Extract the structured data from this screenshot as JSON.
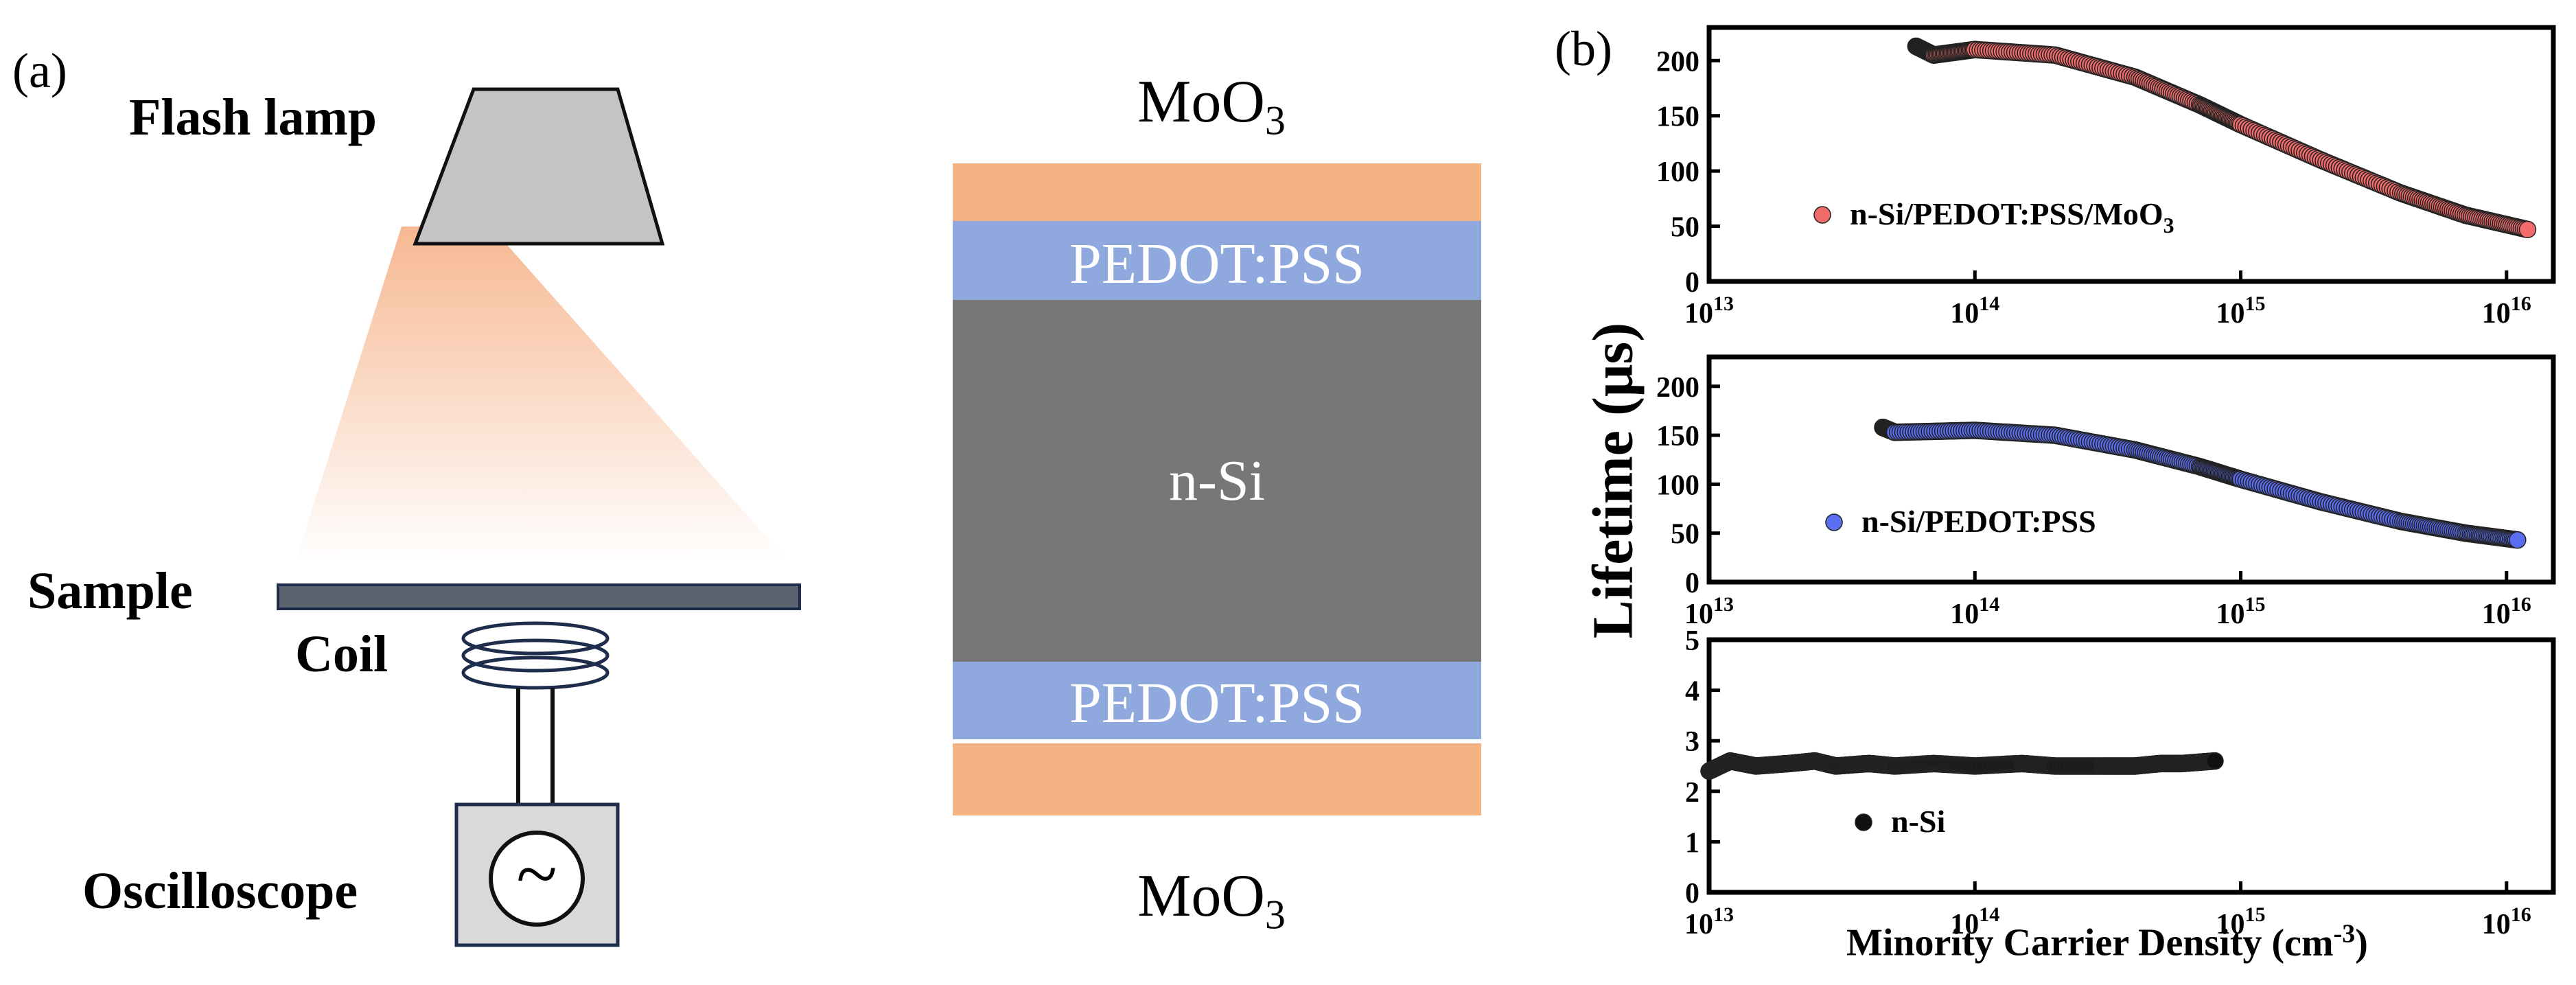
{
  "panel_a": {
    "label": "(a)",
    "flash_lamp_label": "Flash lamp",
    "sample_label": "Sample",
    "coil_label": "Coil",
    "oscilloscope_label": "Oscilloscope",
    "oscilloscope_symbol": "~",
    "colors": {
      "lamp": "#c4c4c4",
      "beam": "#f6b48c",
      "sample": "#5b6270",
      "coil": "#1f2d4d"
    }
  },
  "stack": {
    "top_label_base": "MoO",
    "top_label_sub": "3",
    "bottom_label_base": "MoO",
    "bottom_label_sub": "3",
    "pedot_top": "PEDOT:PSS",
    "nsi": "n-Si",
    "pedot_bottom": "PEDOT:PSS",
    "colors": {
      "moo3": "#f3b382",
      "pedot": "#8fa8dd",
      "nsi": "#777777"
    }
  },
  "panel_b": {
    "label": "(b)",
    "ylabel": "Lifetime (μs)",
    "xlabel_text": "Minority Carrier Density",
    "xlabel_unit_base": "(cm",
    "xlabel_unit_sup": "-3",
    "xlabel_unit_close": ")",
    "tick_base": "10",
    "tick_exps": [
      "13",
      "14",
      "15",
      "16"
    ]
  },
  "chart_data": [
    {
      "type": "scatter",
      "title": "",
      "series": [
        {
          "name": "n-Si/PEDOT:PSS/MoO3",
          "color": "#f26b6b",
          "x": [
            60000000000000.0,
            70000000000000.0,
            100000000000000.0,
            200000000000000.0,
            400000000000000.0,
            700000000000000.0,
            1000000000000000.0,
            2000000000000000.0,
            4000000000000000.0,
            7000000000000000.0,
            1.2e+16
          ],
          "y": [
            213,
            205,
            210,
            205,
            185,
            160,
            142,
            110,
            80,
            60,
            47
          ]
        }
      ],
      "legend_base": "n-Si/PEDOT:PSS/MoO",
      "legend_sub": "3",
      "xscale": "log",
      "xlim": [
        10000000000000.0,
        1.5e+16
      ],
      "ylim": [
        0,
        230
      ],
      "yticks": [
        "0",
        "50",
        "100",
        "150",
        "200"
      ]
    },
    {
      "type": "scatter",
      "title": "",
      "series": [
        {
          "name": "n-Si/PEDOT:PSS",
          "color": "#5b6ef2",
          "x": [
            45000000000000.0,
            50000000000000.0,
            100000000000000.0,
            200000000000000.0,
            400000000000000.0,
            700000000000000.0,
            1000000000000000.0,
            2000000000000000.0,
            4000000000000000.0,
            7000000000000000.0,
            1.1e+16
          ],
          "y": [
            158,
            153,
            155,
            150,
            135,
            118,
            105,
            82,
            62,
            50,
            43
          ]
        }
      ],
      "legend_base": "n-Si/PEDOT:PSS",
      "legend_sub": "",
      "xscale": "log",
      "xlim": [
        10000000000000.0,
        1.5e+16
      ],
      "ylim": [
        0,
        230
      ],
      "yticks": [
        "0",
        "50",
        "100",
        "150",
        "200"
      ]
    },
    {
      "type": "scatter",
      "title": "",
      "series": [
        {
          "name": "n-Si",
          "color": "#111111",
          "x": [
            10000000000000.0,
            12000000000000.0,
            15000000000000.0,
            20000000000000.0,
            25000000000000.0,
            30000000000000.0,
            40000000000000.0,
            50000000000000.0,
            70000000000000.0,
            100000000000000.0,
            150000000000000.0,
            200000000000000.0,
            300000000000000.0,
            400000000000000.0,
            500000000000000.0,
            600000000000000.0,
            800000000000000.0
          ],
          "y": [
            2.4,
            2.6,
            2.5,
            2.55,
            2.6,
            2.5,
            2.55,
            2.5,
            2.55,
            2.5,
            2.55,
            2.5,
            2.5,
            2.5,
            2.55,
            2.55,
            2.6
          ]
        }
      ],
      "legend_base": "n-Si",
      "legend_sub": "",
      "xscale": "log",
      "xlim": [
        10000000000000.0,
        1.5e+16
      ],
      "ylim": [
        0,
        5
      ],
      "yticks": [
        "0",
        "1",
        "2",
        "3",
        "4",
        "5"
      ]
    }
  ]
}
